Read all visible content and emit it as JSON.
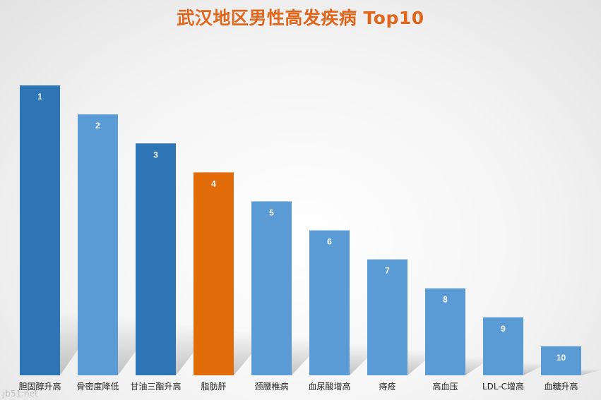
{
  "chart_data": {
    "type": "bar",
    "title": "武汉地区男性高发疾病 Top10",
    "categories": [
      "胆固醇升高",
      "骨密度降低",
      "甘油三酯升高",
      "脂肪肝",
      "颈腰椎病",
      "血尿酸增高",
      "痔疮",
      "高血压",
      "LDL-C增高",
      "血糖升高"
    ],
    "values": [
      10,
      9,
      8,
      7,
      6,
      5,
      4,
      3,
      2,
      1
    ],
    "data_labels": [
      "1",
      "2",
      "3",
      "4",
      "5",
      "6",
      "7",
      "8",
      "9",
      "10"
    ],
    "bar_colors": [
      "#2e75b6",
      "#5b9bd5",
      "#2e75b6",
      "#e36c0a",
      "#5b9bd5",
      "#5b9bd5",
      "#5b9bd5",
      "#5b9bd5",
      "#5b9bd5",
      "#5b9bd5"
    ],
    "xlabel": "",
    "ylabel": "",
    "grid": false,
    "legend": "none"
  },
  "watermark": "jb51.net"
}
